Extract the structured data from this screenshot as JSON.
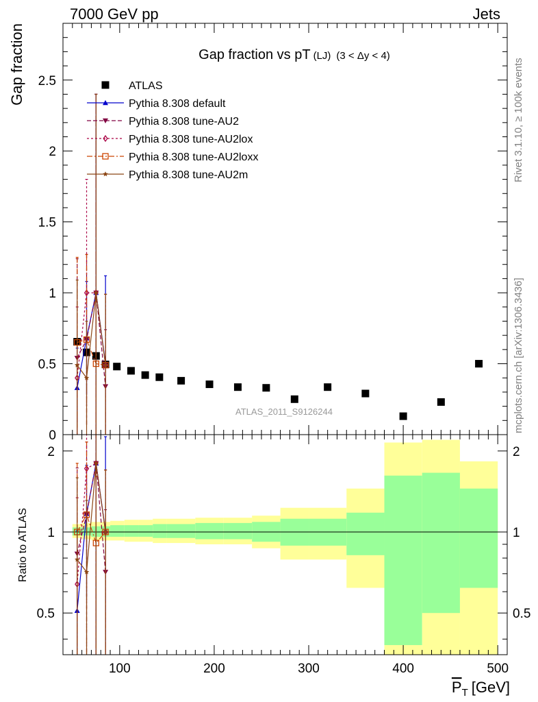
{
  "header": {
    "left": "7000 GeV pp",
    "right": "Jets"
  },
  "side_labels": {
    "rivet": "Rivet 3.1.10, ≥ 100k events",
    "mcplots": "mcplots.cern.ch [arXiv:1306.3436]"
  },
  "colors": {
    "atlas": "#000000",
    "default": "#0000cc",
    "au2": "#800040",
    "au2lox": "#aa0044",
    "au2loxx": "#cc4400",
    "au2m": "#8b4513",
    "band_inner": "#99ff99",
    "band_outer": "#ffff99"
  },
  "chart_data": [
    {
      "type": "scatter",
      "title": "Gap fraction vs pT",
      "title_sub": "(LJ)",
      "title_range": "(3 < Δy < 4)",
      "ylabel": "Gap fraction",
      "watermark": "ATLAS_2011_S9126244",
      "xlim": [
        40,
        510
      ],
      "ylim": [
        0,
        2.9
      ],
      "y_ticks": [
        "0",
        "0.5",
        "1",
        "1.5",
        "2",
        "2.5"
      ],
      "grid": false,
      "legend_position": "top-left",
      "legend": [
        "ATLAS",
        "Pythia 8.308 default",
        "Pythia 8.308 tune-AU2",
        "Pythia 8.308 tune-AU2lox",
        "Pythia 8.308 tune-AU2loxx",
        "Pythia 8.308 tune-AU2m"
      ],
      "x": [
        55,
        65,
        75,
        85,
        97,
        112,
        127,
        142,
        165,
        195,
        225,
        255,
        285,
        320,
        360,
        400,
        440,
        480
      ],
      "x_halfwidth": [
        5,
        5,
        5,
        5,
        7.5,
        7.5,
        7.5,
        7.5,
        15,
        15,
        15,
        15,
        15,
        20,
        20,
        20,
        20,
        20
      ],
      "series": [
        {
          "key": "atlas",
          "values": [
            0.655,
            0.58,
            0.555,
            0.495,
            0.48,
            0.45,
            0.42,
            0.405,
            0.38,
            0.355,
            0.335,
            0.33,
            0.25,
            0.335,
            0.29,
            0.13,
            0.23,
            0.5
          ]
        },
        {
          "key": "default",
          "x": [
            55,
            65,
            75,
            85
          ],
          "values": [
            0.33,
            0.68,
            1.0,
            0.5
          ],
          "err": [
            0.28,
            0.4,
            1.4,
            0.62
          ]
        },
        {
          "key": "au2",
          "x": [
            55,
            65,
            75,
            85
          ],
          "values": [
            0.54,
            0.67,
            1.0,
            0.34
          ],
          "err": [
            0.7,
            0.6,
            1.4,
            0.4
          ]
        },
        {
          "key": "au2lox",
          "x": [
            55,
            65,
            75,
            85
          ],
          "values": [
            0.4,
            1.0,
            1.0,
            0.49
          ],
          "err": [
            0.5,
            0.8,
            1.4,
            0.5
          ]
        },
        {
          "key": "au2loxx",
          "x": [
            55,
            65,
            75,
            85
          ],
          "values": [
            0.65,
            0.67,
            0.5,
            0.49
          ],
          "err": [
            0.6,
            0.6,
            0.5,
            0.5
          ]
        },
        {
          "key": "au2m",
          "x": [
            55,
            65,
            75,
            85
          ],
          "values": [
            0.49,
            0.4,
            1.0,
            0.49
          ],
          "err": [
            0.6,
            0.4,
            1.4,
            0.5
          ]
        }
      ]
    },
    {
      "type": "scatter",
      "ylabel": "Ratio to ATLAS",
      "xlabel": "P̅T [GeV]",
      "xlabel_main": "P",
      "xlabel_sub": "T",
      "xlabel_unit": "[GeV]",
      "xlim": [
        40,
        510
      ],
      "ylim": [
        0.35,
        2.3
      ],
      "log_y": true,
      "y_ticks": [
        "0.5",
        "1",
        "2"
      ],
      "x_ticks": [
        "100",
        "200",
        "300",
        "400",
        "500"
      ],
      "bands": {
        "x_low": [
          50,
          60,
          70,
          80,
          90,
          105,
          120,
          135,
          150,
          180,
          210,
          240,
          270,
          300,
          340,
          380,
          420,
          460
        ],
        "x_high": [
          60,
          70,
          80,
          90,
          105,
          120,
          135,
          150,
          180,
          210,
          240,
          270,
          300,
          340,
          380,
          420,
          460,
          500
        ],
        "inner": [
          [
            0.97,
            1.04
          ],
          [
            0.97,
            1.04
          ],
          [
            0.96,
            1.05
          ],
          [
            0.96,
            1.05
          ],
          [
            0.96,
            1.06
          ],
          [
            0.96,
            1.06
          ],
          [
            0.96,
            1.06
          ],
          [
            0.95,
            1.07
          ],
          [
            0.95,
            1.07
          ],
          [
            0.94,
            1.08
          ],
          [
            0.94,
            1.08
          ],
          [
            0.92,
            1.09
          ],
          [
            0.89,
            1.12
          ],
          [
            0.89,
            1.12
          ],
          [
            0.82,
            1.18
          ],
          [
            0.38,
            1.62
          ],
          [
            0.5,
            1.66
          ],
          [
            0.62,
            1.45
          ]
        ],
        "outer": [
          [
            0.95,
            1.07
          ],
          [
            0.94,
            1.08
          ],
          [
            0.93,
            1.09
          ],
          [
            0.93,
            1.09
          ],
          [
            0.93,
            1.1
          ],
          [
            0.92,
            1.11
          ],
          [
            0.92,
            1.11
          ],
          [
            0.91,
            1.12
          ],
          [
            0.91,
            1.12
          ],
          [
            0.9,
            1.13
          ],
          [
            0.9,
            1.13
          ],
          [
            0.87,
            1.15
          ],
          [
            0.79,
            1.23
          ],
          [
            0.79,
            1.23
          ],
          [
            0.62,
            1.45
          ],
          [
            0.35,
            2.15
          ],
          [
            0.35,
            2.2
          ],
          [
            0.35,
            1.83
          ]
        ]
      },
      "series": [
        {
          "key": "default",
          "x": [
            55,
            65,
            75,
            85
          ],
          "values": [
            0.51,
            1.17,
            1.8,
            1.01
          ],
          "err": [
            0.5,
            0.6,
            1.5,
            1.25
          ]
        },
        {
          "key": "au2",
          "x": [
            55,
            65,
            75,
            85
          ],
          "values": [
            0.83,
            1.16,
            1.8,
            0.71
          ],
          "err": [
            0.9,
            1.0,
            1.5,
            0.5
          ]
        },
        {
          "key": "au2lox",
          "x": [
            55,
            65,
            75,
            85
          ],
          "values": [
            0.64,
            1.72,
            1.8,
            1.0
          ],
          "err": [
            0.7,
            1.2,
            1.5,
            0.7
          ]
        },
        {
          "key": "au2loxx",
          "x": [
            55,
            65,
            75,
            85
          ],
          "values": [
            1.0,
            1.16,
            0.91,
            1.0
          ],
          "err": [
            0.8,
            1.0,
            0.7,
            0.7
          ]
        },
        {
          "key": "au2m",
          "x": [
            55,
            65,
            75,
            85
          ],
          "values": [
            0.79,
            0.71,
            1.8,
            1.0
          ],
          "err": [
            0.8,
            0.6,
            1.5,
            0.7
          ]
        }
      ]
    }
  ]
}
